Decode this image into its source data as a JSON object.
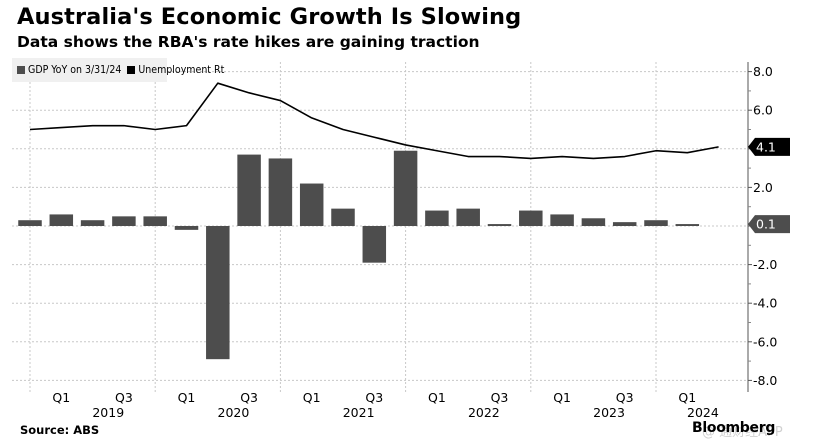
{
  "header": {
    "title": "Australia's Economic Growth Is Slowing",
    "subtitle": "Data shows the RBA's rate hikes are gaining traction"
  },
  "legend": [
    {
      "label": "GDP YoY on 3/31/24",
      "color": "#4d4d4d"
    },
    {
      "label": "Unemployment Rt",
      "color": "#000000"
    }
  ],
  "footer": {
    "source": "Source: ABS",
    "brand": "Bloomberg",
    "watermark": "@ 通财经APP"
  },
  "chart_data": {
    "type": "bar+line",
    "title": "Australia's Economic Growth Is Slowing",
    "subtitle": "Data shows the RBA's rate hikes are gaining traction",
    "xlabel": "",
    "ylabel": "",
    "ylim": [
      -8,
      8.6
    ],
    "y_ticks": [
      8.0,
      6.0,
      4.0,
      2.0,
      0.0,
      -2.0,
      -4.0,
      -6.0,
      -8.0
    ],
    "y_tick_labels": [
      "8.0",
      "6.0",
      "4.0",
      "2.0",
      "0.0",
      "-2.0",
      "-4.0",
      "-6.0",
      "-8.0"
    ],
    "y_axis_side": "right",
    "grid": true,
    "legend_position": "top-left",
    "x_quarter_labels": [
      {
        "quarter": "2019Q1",
        "label": "Q1"
      },
      {
        "quarter": "2019Q3",
        "label": "Q3"
      },
      {
        "quarter": "2020Q1",
        "label": "Q1"
      },
      {
        "quarter": "2020Q3",
        "label": "Q3"
      },
      {
        "quarter": "2021Q1",
        "label": "Q1"
      },
      {
        "quarter": "2021Q3",
        "label": "Q3"
      },
      {
        "quarter": "2022Q1",
        "label": "Q1"
      },
      {
        "quarter": "2022Q3",
        "label": "Q3"
      },
      {
        "quarter": "2023Q1",
        "label": "Q1"
      },
      {
        "quarter": "2023Q3",
        "label": "Q3"
      },
      {
        "quarter": "2024Q1",
        "label": "Q1"
      }
    ],
    "x_year_labels": [
      "2019",
      "2020",
      "2021",
      "2022",
      "2023",
      "2024"
    ],
    "x": [
      "2018Q4",
      "2019Q1",
      "2019Q2",
      "2019Q3",
      "2019Q4",
      "2020Q1",
      "2020Q2",
      "2020Q3",
      "2020Q4",
      "2021Q1",
      "2021Q2",
      "2021Q3",
      "2021Q4",
      "2022Q1",
      "2022Q2",
      "2022Q3",
      "2022Q4",
      "2023Q1",
      "2023Q2",
      "2023Q3",
      "2023Q4",
      "2024Q1",
      "2024Q2"
    ],
    "series": [
      {
        "name": "GDP YoY on 3/31/24",
        "type": "bar",
        "color": "#4d4d4d",
        "values": [
          0.3,
          0.6,
          0.3,
          0.5,
          0.5,
          -0.2,
          -6.9,
          3.7,
          3.5,
          2.2,
          0.9,
          -1.9,
          3.9,
          0.8,
          0.9,
          0.1,
          0.8,
          0.6,
          0.4,
          0.2,
          0.3,
          0.1,
          null
        ],
        "last_value_label": "0.1"
      },
      {
        "name": "Unemployment Rt",
        "type": "line",
        "color": "#000000",
        "values": [
          5.0,
          5.1,
          5.2,
          5.2,
          5.0,
          5.2,
          7.4,
          6.9,
          6.5,
          5.6,
          5.0,
          4.6,
          4.2,
          3.9,
          3.6,
          3.6,
          3.5,
          3.6,
          3.5,
          3.6,
          3.9,
          3.8,
          4.1
        ],
        "last_value_label": "4.1"
      }
    ]
  }
}
